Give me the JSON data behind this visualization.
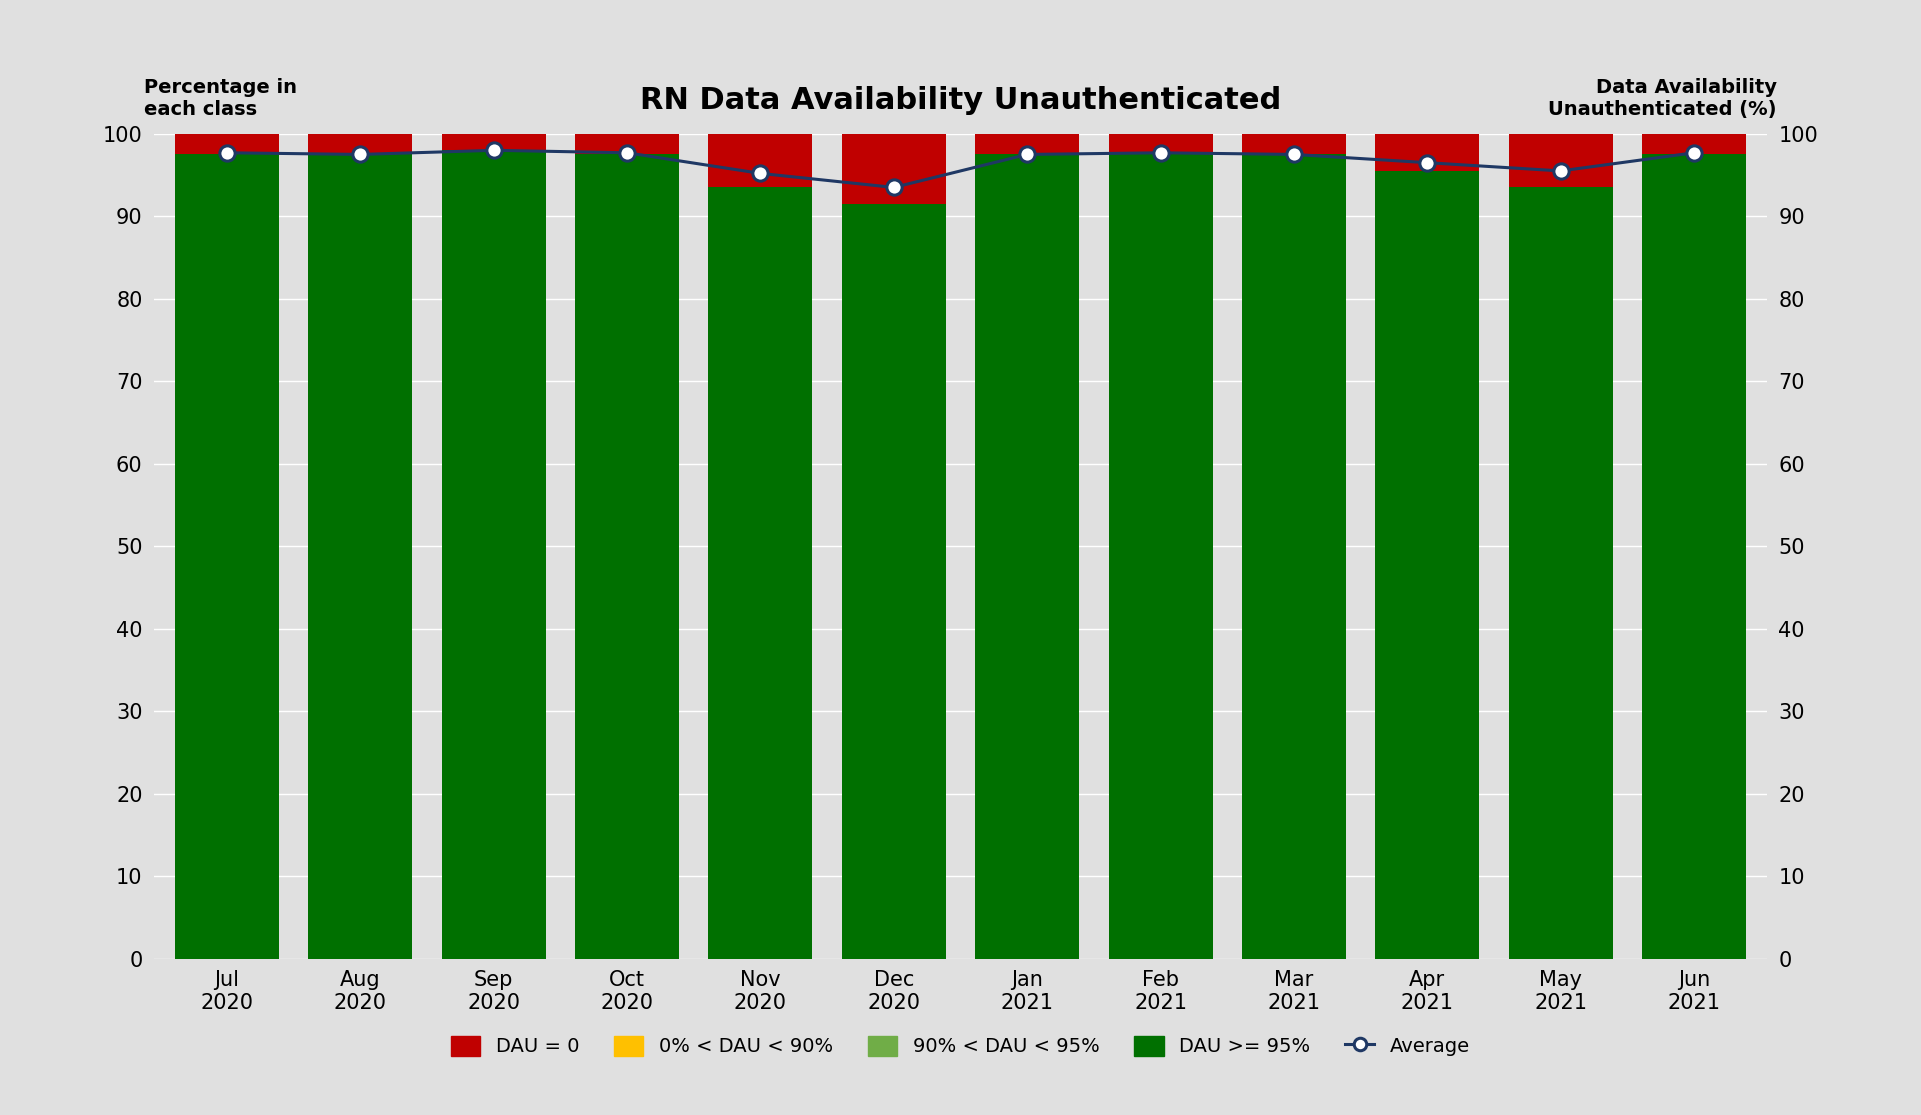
{
  "title": "RN Data Availability Unauthenticated",
  "ylabel_left": "Percentage in\neach class",
  "ylabel_right": "Data Availability\nUnauthenticated (%)",
  "months": [
    "Jul\n2020",
    "Aug\n2020",
    "Sep\n2020",
    "Oct\n2020",
    "Nov\n2020",
    "Dec\n2020",
    "Jan\n2021",
    "Feb\n2021",
    "Mar\n2021",
    "Apr\n2021",
    "May\n2021",
    "Jun\n2021"
  ],
  "dau_high": [
    97.5,
    97.5,
    98.0,
    97.5,
    93.5,
    91.5,
    97.5,
    97.5,
    97.5,
    95.5,
    93.5,
    97.5
  ],
  "dau_mid": [
    0.0,
    0.0,
    0.0,
    0.0,
    0.0,
    0.0,
    0.0,
    0.0,
    0.0,
    0.0,
    0.0,
    0.0
  ],
  "dau_low": [
    0.0,
    0.0,
    0.0,
    0.0,
    0.0,
    0.0,
    0.0,
    0.0,
    0.0,
    0.0,
    0.0,
    0.0
  ],
  "dau_zero": [
    2.5,
    2.5,
    2.0,
    2.5,
    6.5,
    8.5,
    2.5,
    2.5,
    2.5,
    4.5,
    6.5,
    2.5
  ],
  "average": [
    97.7,
    97.5,
    98.0,
    97.7,
    95.2,
    93.5,
    97.5,
    97.7,
    97.5,
    96.5,
    95.5,
    97.7
  ],
  "color_dau_zero": "#c00000",
  "color_dau_low": "#ffc000",
  "color_dau_mid": "#70ad47",
  "color_dau_high": "#007000",
  "color_avg_line": "#1f3864",
  "color_avg_marker_face": "#ffffff",
  "color_avg_marker_edge": "#1f3864",
  "background_color": "#e0e0e0",
  "plot_bg_color": "#e0e0e0",
  "grid_color": "#ffffff",
  "ylim": [
    0,
    100
  ],
  "yticks": [
    0,
    10,
    20,
    30,
    40,
    50,
    60,
    70,
    80,
    90,
    100
  ]
}
